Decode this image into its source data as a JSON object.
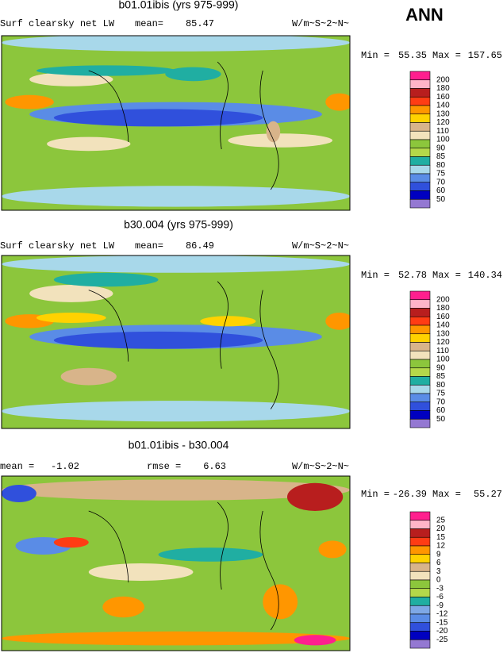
{
  "header": {
    "season": "ANN"
  },
  "panels": [
    {
      "title": "b01.01ibis (yrs 975-999)",
      "variable": "Surf clearsky net LW",
      "stats": [
        {
          "label": "mean=",
          "value": "85.47"
        }
      ],
      "units": "W/m~S~2~N~",
      "min_label": "Min =",
      "min_value": "55.35",
      "max_label": "Max =",
      "max_value": "157.65",
      "colorbar": {
        "labels": [
          "200",
          "180",
          "160",
          "140",
          "130",
          "120",
          "110",
          "100",
          "90",
          "85",
          "80",
          "75",
          "70",
          "60",
          "50"
        ],
        "colors": [
          "#ff1f8e",
          "#ffb4c8",
          "#b81e1e",
          "#ff3c14",
          "#ff9600",
          "#ffd200",
          "#d8b48a",
          "#f2e2bc",
          "#8cc63c",
          "#b4d84a",
          "#20aea2",
          "#a8d8ea",
          "#5a8ce6",
          "#3050dc",
          "#0000c0",
          "#9478d2"
        ]
      }
    },
    {
      "title": "b30.004 (yrs 975-999)",
      "variable": "Surf clearsky net LW",
      "stats": [
        {
          "label": "mean=",
          "value": "86.49"
        }
      ],
      "units": "W/m~S~2~N~",
      "min_label": "Min =",
      "min_value": "52.78",
      "max_label": "Max =",
      "max_value": "140.34",
      "colorbar": {
        "labels": [
          "200",
          "180",
          "160",
          "140",
          "130",
          "120",
          "110",
          "100",
          "90",
          "85",
          "80",
          "75",
          "70",
          "60",
          "50"
        ],
        "colors": [
          "#ff1f8e",
          "#ffb4c8",
          "#b81e1e",
          "#ff3c14",
          "#ff9600",
          "#ffd200",
          "#d8b48a",
          "#f2e2bc",
          "#8cc63c",
          "#b4d84a",
          "#20aea2",
          "#a8d8ea",
          "#5a8ce6",
          "#3050dc",
          "#0000c0",
          "#9478d2"
        ]
      }
    },
    {
      "title": "b01.01ibis - b30.004",
      "stats": [
        {
          "label": "mean =",
          "value": "-1.02"
        },
        {
          "label": "rmse =",
          "value": "6.63"
        }
      ],
      "units": "W/m~S~2~N~",
      "min_label": "Min =",
      "min_value": "-26.39",
      "max_label": "Max =",
      "max_value": "55.27",
      "colorbar": {
        "labels": [
          "25",
          "20",
          "15",
          "12",
          "9",
          "6",
          "3",
          "0",
          "-3",
          "-6",
          "-9",
          "-12",
          "-15",
          "-20",
          "-25"
        ],
        "colors": [
          "#ff1f8e",
          "#ffb4c8",
          "#b81e1e",
          "#ff3c14",
          "#ff9600",
          "#ffd200",
          "#d8b48a",
          "#f2e2bc",
          "#8cc63c",
          "#b4d84a",
          "#20aea2",
          "#7ea8e6",
          "#5a8ce6",
          "#3050dc",
          "#0000c0",
          "#9478d2"
        ]
      }
    }
  ]
}
